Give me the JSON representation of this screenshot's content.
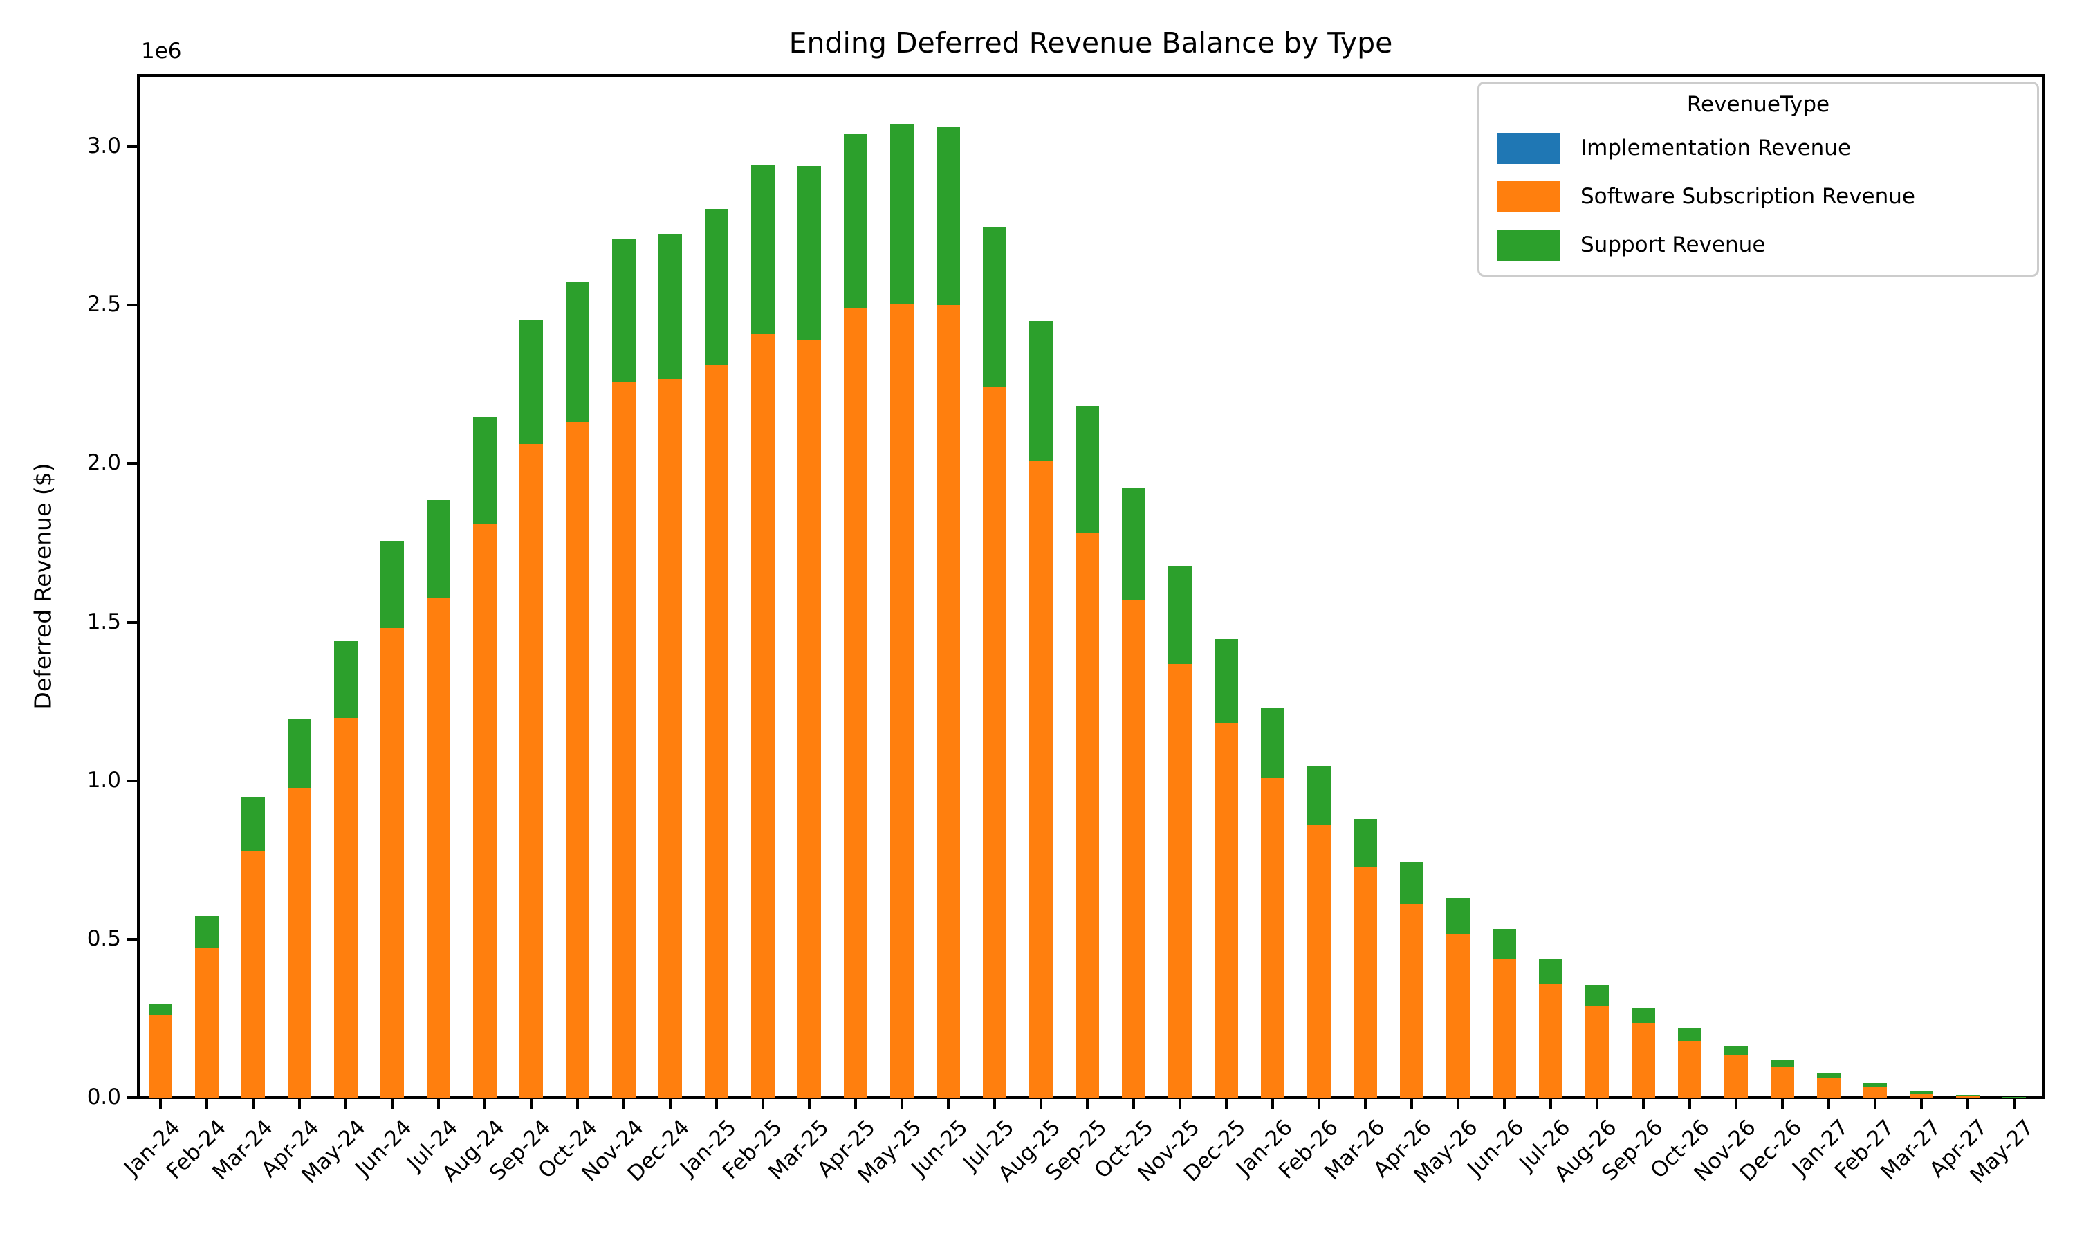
{
  "chart_data": {
    "type": "bar",
    "stacked": true,
    "title": "Ending Deferred Revenue Balance by Type",
    "xlabel": "",
    "ylabel": "Deferred Revenue ($)",
    "y_offset_label": "1e6",
    "ylim": [
      0,
      3225000
    ],
    "grid": false,
    "yticks": [
      {
        "value": 0,
        "label": "0.0"
      },
      {
        "value": 500000,
        "label": "0.5"
      },
      {
        "value": 1000000,
        "label": "1.0"
      },
      {
        "value": 1500000,
        "label": "1.5"
      },
      {
        "value": 2000000,
        "label": "2.0"
      },
      {
        "value": 2500000,
        "label": "2.5"
      },
      {
        "value": 3000000,
        "label": "3.0"
      }
    ],
    "categories": [
      "Jan-24",
      "Feb-24",
      "Mar-24",
      "Apr-24",
      "May-24",
      "Jun-24",
      "Jul-24",
      "Aug-24",
      "Sep-24",
      "Oct-24",
      "Nov-24",
      "Dec-24",
      "Jan-25",
      "Feb-25",
      "Mar-25",
      "Apr-25",
      "May-25",
      "Jun-25",
      "Jul-25",
      "Aug-25",
      "Sep-25",
      "Oct-25",
      "Nov-25",
      "Dec-25",
      "Jan-26",
      "Feb-26",
      "Mar-26",
      "Apr-26",
      "May-26",
      "Jun-26",
      "Jul-26",
      "Aug-26",
      "Sep-26",
      "Oct-26",
      "Nov-26",
      "Dec-26",
      "Jan-27",
      "Feb-27",
      "Mar-27",
      "Apr-27",
      "May-27"
    ],
    "series": [
      {
        "name": "Implementation Revenue",
        "color": "#1f77b4",
        "values": [
          0,
          0,
          0,
          0,
          0,
          0,
          0,
          0,
          0,
          0,
          0,
          0,
          0,
          0,
          0,
          0,
          0,
          0,
          0,
          0,
          0,
          0,
          0,
          0,
          0,
          0,
          0,
          0,
          0,
          0,
          0,
          0,
          0,
          0,
          0,
          0,
          0,
          0,
          0,
          0,
          0
        ]
      },
      {
        "name": "Software Subscription Revenue",
        "color": "#ff7f0e",
        "values": [
          259000,
          471000,
          778000,
          978000,
          1198000,
          1481000,
          1578000,
          1810000,
          2063000,
          2132000,
          2258000,
          2268000,
          2310000,
          2408000,
          2392000,
          2490000,
          2505000,
          2500000,
          2240000,
          2008000,
          1783000,
          1570000,
          1368000,
          1182000,
          1008000,
          860000,
          728000,
          612000,
          517000,
          436000,
          359000,
          290000,
          235000,
          178000,
          134000,
          97000,
          63000,
          32000,
          14000,
          4000,
          1000
        ]
      },
      {
        "name": "Support Revenue",
        "color": "#2ca02c",
        "values": [
          38000,
          100000,
          169000,
          215000,
          242000,
          274000,
          307000,
          336000,
          390000,
          440000,
          452000,
          457000,
          493000,
          532000,
          548000,
          549000,
          565000,
          562000,
          506000,
          442000,
          399000,
          353000,
          310000,
          263000,
          222000,
          186000,
          150000,
          133000,
          113000,
          95000,
          79000,
          65000,
          48000,
          41000,
          31000,
          22000,
          14000,
          13000,
          7000,
          4000,
          1000
        ]
      }
    ],
    "legend": {
      "title": "RevenueType",
      "position": "upper right"
    }
  }
}
